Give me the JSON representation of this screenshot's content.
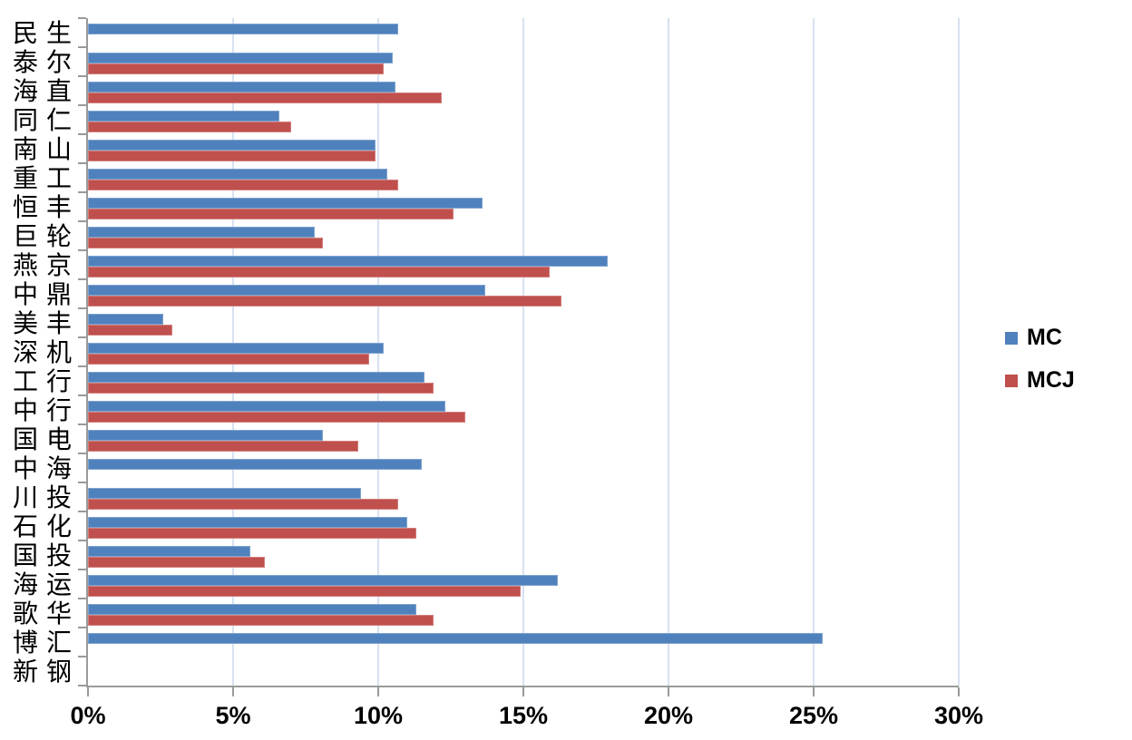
{
  "chart_data": {
    "type": "bar",
    "orientation": "horizontal",
    "title": "",
    "xlabel": "",
    "ylabel": "",
    "categories": [
      "民生",
      "泰尔",
      "海直",
      "同仁",
      "南山",
      "重工",
      "恒丰",
      "巨轮",
      "燕京",
      "中鼎",
      "美丰",
      "深机",
      "工行",
      "中行",
      "国电",
      "中海",
      "川投",
      "石化",
      "国投",
      "海运",
      "歌华",
      "博汇",
      "新钢"
    ],
    "series": [
      {
        "name": "MC",
        "color": "#4F81BD",
        "values": [
          10.7,
          10.5,
          10.6,
          6.6,
          9.9,
          10.3,
          13.6,
          7.8,
          17.9,
          13.7,
          2.6,
          10.2,
          11.6,
          12.3,
          8.1,
          11.5,
          9.4,
          11.0,
          5.6,
          16.2,
          11.3,
          25.3,
          null
        ]
      },
      {
        "name": "MCJ",
        "color": "#C0504D",
        "values": [
          null,
          10.2,
          12.2,
          7.0,
          9.9,
          10.7,
          12.6,
          8.1,
          15.9,
          16.3,
          2.9,
          9.7,
          11.9,
          13.0,
          9.3,
          null,
          10.7,
          11.3,
          6.1,
          14.9,
          11.9,
          null,
          null
        ]
      }
    ],
    "x_ticks": [
      "0%",
      "5%",
      "10%",
      "15%",
      "20%",
      "25%",
      "30%"
    ],
    "xlim": [
      0,
      30
    ],
    "grid": "vertical-light-blue",
    "legend_position": "right"
  },
  "legend": {
    "mc_label": "MC",
    "mcj_label": "MCJ"
  },
  "colors": {
    "mc": "#4F81BD",
    "mcj": "#C0504D",
    "gridline": "#d7e1f1",
    "axis": "#9a9a9a"
  }
}
